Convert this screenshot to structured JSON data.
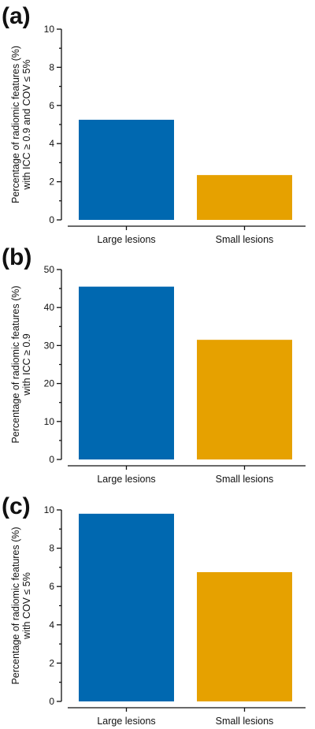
{
  "chart_data": [
    {
      "type": "bar",
      "panel_label": "(a)",
      "categories": [
        "Large lesions",
        "Small lesions"
      ],
      "values": [
        5.25,
        2.35
      ],
      "colors": [
        "#0068b0",
        "#e6a100"
      ],
      "ylabel_lines": [
        "Percentage of radiomic features (%)",
        "with ICC ≥ 0.9 and COV ≤ 5%"
      ],
      "ylim": [
        0,
        10
      ],
      "yticks": [
        0,
        2,
        4,
        6,
        8,
        10
      ],
      "ytick_labels": [
        "0",
        "2",
        "4",
        "6",
        "8",
        "10"
      ],
      "grid": false,
      "legend": "none"
    },
    {
      "type": "bar",
      "panel_label": "(b)",
      "categories": [
        "Large lesions",
        "Small lesions"
      ],
      "values": [
        45.5,
        31.5
      ],
      "colors": [
        "#0068b0",
        "#e6a100"
      ],
      "ylabel_lines": [
        "Percentage of radiomic features (%)",
        "with ICC ≥ 0.9"
      ],
      "ylim": [
        0,
        50
      ],
      "yticks": [
        0,
        10,
        20,
        30,
        40,
        50
      ],
      "ytick_labels": [
        "0",
        "10",
        "20",
        "30",
        "40",
        "50"
      ],
      "grid": false,
      "legend": "none"
    },
    {
      "type": "bar",
      "panel_label": "(c)",
      "categories": [
        "Large lesions",
        "Small lesions"
      ],
      "values": [
        9.8,
        6.75
      ],
      "colors": [
        "#0068b0",
        "#e6a100"
      ],
      "ylabel_lines": [
        "Percentage of radiomic features (%)",
        "with COV ≤ 5%"
      ],
      "ylim": [
        0,
        10
      ],
      "yticks": [
        0,
        2,
        4,
        6,
        8,
        10
      ],
      "ytick_labels": [
        "0",
        "2",
        "4",
        "6",
        "8",
        "10"
      ],
      "grid": false,
      "legend": "none"
    }
  ]
}
